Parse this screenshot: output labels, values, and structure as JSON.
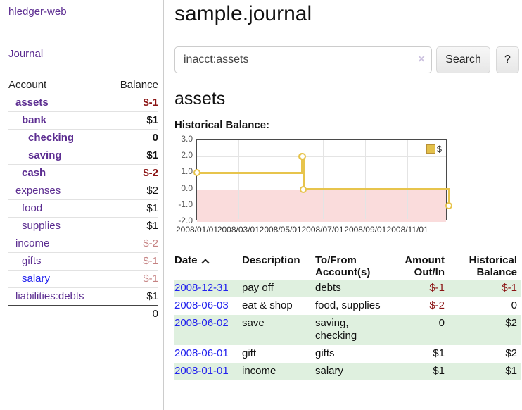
{
  "app": {
    "title": "hledger-web",
    "nav_journal": "Journal"
  },
  "colors": {
    "accent_purple": "#5c2d91",
    "link_blue": "#2222ee",
    "negative_strong": "#8b1414",
    "negative_soft": "#c58282",
    "stripe_green": "#dff0df",
    "chart_gold": "#e7c44c",
    "chart_negative_bg": "#fadcdc",
    "chart_zero_line": "#9b1c1c"
  },
  "sidebar": {
    "table_headers": {
      "account": "Account",
      "balance": "Balance"
    },
    "accounts": [
      {
        "name": "assets",
        "depth": 0,
        "bold": true,
        "balance": "$-1",
        "balance_style": "neg-strong"
      },
      {
        "name": "bank",
        "depth": 1,
        "bold": true,
        "balance": "$1",
        "balance_style": "pos"
      },
      {
        "name": "checking",
        "depth": 2,
        "bold": true,
        "balance": "0",
        "balance_style": "pos"
      },
      {
        "name": "saving",
        "depth": 2,
        "bold": true,
        "balance": "$1",
        "balance_style": "pos"
      },
      {
        "name": "cash",
        "depth": 1,
        "bold": true,
        "balance": "$-2",
        "balance_style": "neg-strong"
      },
      {
        "name": "expenses",
        "depth": 0,
        "bold": false,
        "balance": "$2",
        "balance_style": "pos"
      },
      {
        "name": "food",
        "depth": 1,
        "bold": false,
        "balance": "$1",
        "balance_style": "pos"
      },
      {
        "name": "supplies",
        "depth": 1,
        "bold": false,
        "balance": "$1",
        "balance_style": "pos"
      },
      {
        "name": "income",
        "depth": 0,
        "bold": false,
        "balance": "$-2",
        "balance_style": "neg-soft"
      },
      {
        "name": "gifts",
        "depth": 1,
        "bold": false,
        "balance": "$-1",
        "balance_style": "neg-soft"
      },
      {
        "name": "salary",
        "depth": 1,
        "bold": false,
        "balance": "$-1",
        "balance_style": "neg-soft",
        "link_style": "unvisited"
      },
      {
        "name": "liabilities:debts",
        "depth": 0,
        "bold": false,
        "balance": "$1",
        "balance_style": "pos"
      }
    ],
    "total": "0"
  },
  "header": {
    "title": "sample.journal"
  },
  "search": {
    "value": "inacct:assets",
    "clear_icon": "×",
    "button_label": "Search",
    "help_label": "?"
  },
  "account_page": {
    "title": "assets",
    "chart_label": "Historical Balance:"
  },
  "chart_data": {
    "type": "line",
    "step": true,
    "title": "Historical Balance",
    "ylim": [
      -2,
      3
    ],
    "y_ticks": [
      3.0,
      2.0,
      1.0,
      0.0,
      -1.0,
      -2.0
    ],
    "x_range": [
      "2008-01-01",
      "2008-12-31"
    ],
    "x_ticks": [
      {
        "date": "2008-01-01",
        "label": "2008/01/01"
      },
      {
        "date": "2008-03-01",
        "label": "2008/03/01"
      },
      {
        "date": "2008-05-01",
        "label": "2008/05/01"
      },
      {
        "date": "2008-07-01",
        "label": "2008/07/01"
      },
      {
        "date": "2008-09-01",
        "label": "2008/09/01"
      },
      {
        "date": "2008-11-01",
        "label": "2008/11/01"
      }
    ],
    "grid": true,
    "legend": {
      "position": "top-right",
      "label": "$"
    },
    "series": [
      {
        "name": "$",
        "points": [
          [
            "2008-01-01",
            1
          ],
          [
            "2008-06-01",
            2
          ],
          [
            "2008-06-02",
            2
          ],
          [
            "2008-06-03",
            0
          ],
          [
            "2008-12-31",
            -1
          ]
        ]
      }
    ]
  },
  "register": {
    "headers": [
      {
        "label": "Date",
        "sort_icon": "chevron-up-icon"
      },
      {
        "label": "Description"
      },
      {
        "label": "To/From Account(s)"
      },
      {
        "label": "Amount Out/In"
      },
      {
        "label": "Historical Balance"
      }
    ],
    "rows": [
      {
        "date": "2008-12-31",
        "description": "pay off",
        "accounts": "debts",
        "amount": "$-1",
        "amount_style": "neg",
        "balance": "$-1",
        "balance_style": "neg"
      },
      {
        "date": "2008-06-03",
        "description": "eat & shop",
        "accounts": "food, supplies",
        "amount": "$-2",
        "amount_style": "neg",
        "balance": "0",
        "balance_style": "pos"
      },
      {
        "date": "2008-06-02",
        "description": "save",
        "accounts": "saving, checking",
        "amount": "0",
        "amount_style": "pos",
        "balance": "$2",
        "balance_style": "pos"
      },
      {
        "date": "2008-06-01",
        "description": "gift",
        "accounts": "gifts",
        "amount": "$1",
        "amount_style": "pos",
        "balance": "$2",
        "balance_style": "pos"
      },
      {
        "date": "2008-01-01",
        "description": "income",
        "accounts": "salary",
        "amount": "$1",
        "amount_style": "pos",
        "balance": "$1",
        "balance_style": "pos"
      }
    ]
  }
}
